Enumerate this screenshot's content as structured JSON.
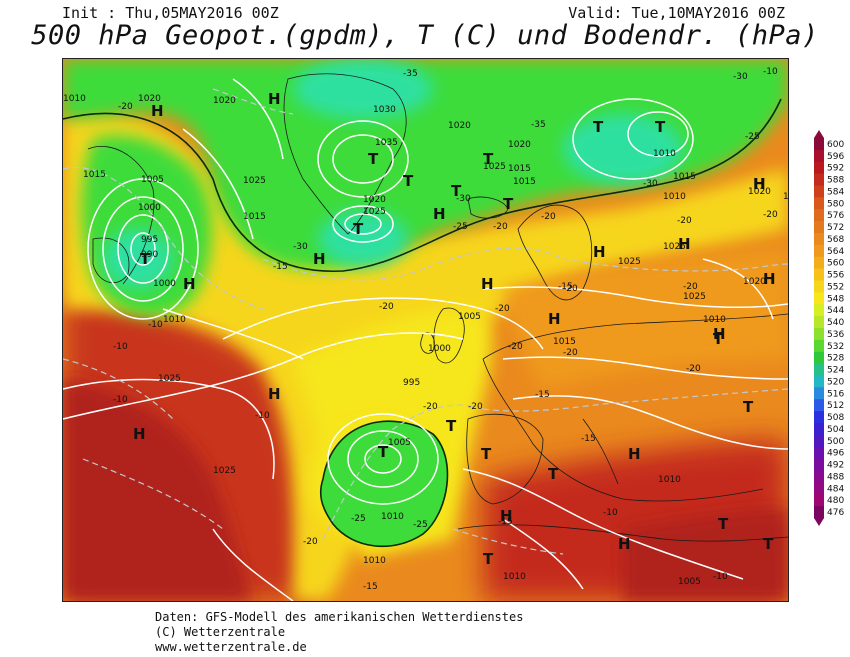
{
  "header": {
    "init": "Init : Thu,05MAY2016 00Z",
    "valid": "Valid: Tue,10MAY2016 00Z",
    "title": "500 hPa Geopot.(gpdm), T (C) und Bodendr. (hPa)"
  },
  "footer": {
    "line1": "Daten: GFS-Modell des amerikanischen Wetterdienstes",
    "line2": "(C) Wetterzentrale",
    "line3": "www.wetterzentrale.de"
  },
  "colors": {
    "green_dark": "#1fbf2a",
    "green": "#3ddc3a",
    "cyan": "#2fe0a0",
    "yellow_green": "#b7e62b",
    "yellow": "#f6e61a",
    "gold": "#f6c21a",
    "orange": "#ef9a1e",
    "orange_red": "#e06a1e",
    "red": "#c8361e",
    "dark_red": "#b0201e",
    "isobar": "#ffffff",
    "isotherm": "#c0c8d0"
  },
  "legend": {
    "values": [
      "600",
      "596",
      "592",
      "588",
      "584",
      "580",
      "576",
      "572",
      "568",
      "564",
      "560",
      "556",
      "552",
      "548",
      "544",
      "540",
      "536",
      "532",
      "528",
      "524",
      "520",
      "516",
      "512",
      "508",
      "504",
      "500",
      "496",
      "492",
      "488",
      "484",
      "480",
      "476"
    ],
    "colors": [
      "#8a0a3a",
      "#a8102e",
      "#b8181e",
      "#c42a1e",
      "#cf3f1e",
      "#d9581e",
      "#e06a1e",
      "#e47a1e",
      "#ea8a1e",
      "#ef9a1e",
      "#f2ac1c",
      "#f6c21a",
      "#f6d61a",
      "#f6e61a",
      "#d6ee24",
      "#b7e62b",
      "#8ee02e",
      "#5ad832",
      "#2fc83a",
      "#26c08a",
      "#22b8c4",
      "#2a8ae0",
      "#2a5ae6",
      "#2a30e0",
      "#3a20d0",
      "#5018c0",
      "#6a10b0",
      "#7a0ca0",
      "#880a90",
      "#940880",
      "#a00670",
      "#7a0660"
    ]
  },
  "map": {
    "pressure_labels": [
      "1010",
      "1020",
      "1015",
      "1005",
      "1000",
      "995",
      "990",
      "1025",
      "1015",
      "1030",
      "1035",
      "1020",
      "1025",
      "1020",
      "1010",
      "1015",
      "1025",
      "1020",
      "1015",
      "1010",
      "1015",
      "1025",
      "1010",
      "1005",
      "1000",
      "995",
      "1005",
      "1010",
      "1025",
      "1015",
      "1010",
      "1010",
      "1020",
      "1025",
      "1015",
      "1020",
      "1010",
      "1005",
      "1010",
      "1000",
      "1020",
      "1025",
      "1020",
      "1025"
    ],
    "temp_labels": [
      "-20",
      "-35",
      "-35",
      "-30",
      "-25",
      "-30",
      "-25",
      "-20",
      "-30",
      "-20",
      "-30",
      "-15",
      "-20",
      "-20",
      "-20",
      "-20",
      "-25",
      "-20",
      "-20",
      "-20",
      "-15",
      "-20",
      "-20",
      "-10",
      "-15",
      "-15",
      "-10",
      "-10",
      "-20",
      "-15",
      "-25",
      "-20",
      "-20",
      "-10",
      "-10",
      "-15",
      "-10",
      "-10"
    ],
    "high_symbol": "H",
    "low_symbol": "T"
  }
}
